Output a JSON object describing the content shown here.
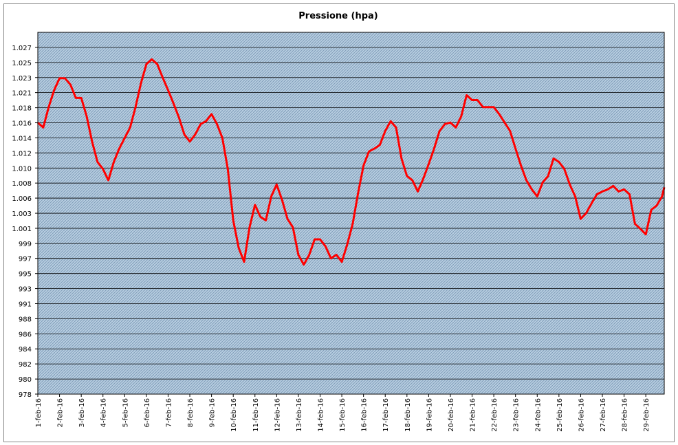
{
  "chart_data": {
    "type": "line",
    "title": "Pressione (hpa)",
    "color": "#ff0000",
    "grid": true,
    "xlim": [
      0,
      28.85
    ],
    "ylim": [
      977.7,
      1029.13
    ],
    "xticks": [
      {
        "value": 0,
        "label": "1-feb-16"
      },
      {
        "value": 1,
        "label": "2-feb-16"
      },
      {
        "value": 2,
        "label": "3-feb-16"
      },
      {
        "value": 3,
        "label": "4-feb-16"
      },
      {
        "value": 4,
        "label": "5-feb-16"
      },
      {
        "value": 5,
        "label": "6-feb-16"
      },
      {
        "value": 6,
        "label": "7-feb-16"
      },
      {
        "value": 7,
        "label": "8-feb-16"
      },
      {
        "value": 8,
        "label": "9-feb-16"
      },
      {
        "value": 9,
        "label": "10-feb-16"
      },
      {
        "value": 10,
        "label": "11-feb-16"
      },
      {
        "value": 11,
        "label": "12-feb-16"
      },
      {
        "value": 12,
        "label": "13-feb-16"
      },
      {
        "value": 13,
        "label": "14-feb-16"
      },
      {
        "value": 14,
        "label": "15-feb-16"
      },
      {
        "value": 15,
        "label": "16-feb-16"
      },
      {
        "value": 16,
        "label": "17-feb-16"
      },
      {
        "value": 17,
        "label": "18-feb-16"
      },
      {
        "value": 18,
        "label": "19-feb-16"
      },
      {
        "value": 19,
        "label": "20-feb-16"
      },
      {
        "value": 20,
        "label": "21-feb-16"
      },
      {
        "value": 21,
        "label": "22-feb-16"
      },
      {
        "value": 22,
        "label": "23-feb-16"
      },
      {
        "value": 23,
        "label": "24-feb-16"
      },
      {
        "value": 24,
        "label": "25-feb-16"
      },
      {
        "value": 25,
        "label": "26-feb-16"
      },
      {
        "value": 26,
        "label": "27-feb-16"
      },
      {
        "value": 27,
        "label": "28-feb-16"
      },
      {
        "value": 28,
        "label": "29-feb-16"
      }
    ],
    "yticks": [
      {
        "value": 977.7,
        "label": "978"
      },
      {
        "value": 979.84,
        "label": "980"
      },
      {
        "value": 981.99,
        "label": "982"
      },
      {
        "value": 984.13,
        "label": "984"
      },
      {
        "value": 986.27,
        "label": "986"
      },
      {
        "value": 988.41,
        "label": "988"
      },
      {
        "value": 990.56,
        "label": "991"
      },
      {
        "value": 992.7,
        "label": "993"
      },
      {
        "value": 994.84,
        "label": "995"
      },
      {
        "value": 996.99,
        "label": "997"
      },
      {
        "value": 999.13,
        "label": "999"
      },
      {
        "value": 1001.27,
        "label": "1.001"
      },
      {
        "value": 1003.41,
        "label": "1.003"
      },
      {
        "value": 1005.56,
        "label": "1.006"
      },
      {
        "value": 1007.7,
        "label": "1.008"
      },
      {
        "value": 1009.84,
        "label": "1.010"
      },
      {
        "value": 1011.99,
        "label": "1.012"
      },
      {
        "value": 1014.13,
        "label": "1.014"
      },
      {
        "value": 1016.27,
        "label": "1.016"
      },
      {
        "value": 1018.41,
        "label": "1.018"
      },
      {
        "value": 1020.56,
        "label": "1.021"
      },
      {
        "value": 1022.7,
        "label": "1.023"
      },
      {
        "value": 1024.84,
        "label": "1.025"
      },
      {
        "value": 1026.99,
        "label": "1.027"
      }
    ],
    "x": [
      0,
      0.25,
      0.5,
      0.75,
      1,
      1.25,
      1.5,
      1.75,
      2,
      2.25,
      2.5,
      2.75,
      3,
      3.25,
      3.5,
      3.75,
      4,
      4.25,
      4.5,
      4.75,
      5,
      5.25,
      5.5,
      5.75,
      6,
      6.25,
      6.5,
      6.75,
      7,
      7.25,
      7.5,
      7.75,
      8,
      8.25,
      8.5,
      8.75,
      9,
      9.25,
      9.5,
      9.75,
      10,
      10.25,
      10.5,
      10.75,
      11,
      11.25,
      11.5,
      11.75,
      12,
      12.25,
      12.5,
      12.75,
      13,
      13.25,
      13.5,
      13.75,
      14,
      14.25,
      14.5,
      14.75,
      15,
      15.25,
      15.5,
      15.75,
      16,
      16.25,
      16.5,
      16.75,
      17,
      17.25,
      17.5,
      17.75,
      18,
      18.25,
      18.5,
      18.75,
      19,
      19.25,
      19.5,
      19.75,
      20,
      20.25,
      20.5,
      20.75,
      21,
      21.25,
      21.5,
      21.75,
      22,
      22.25,
      22.5,
      22.75,
      23,
      23.25,
      23.5,
      23.75,
      24,
      24.25,
      24.5,
      24.75,
      25,
      25.25,
      25.5,
      25.75,
      26,
      26.25,
      26.5,
      26.75,
      27,
      27.25,
      27.5,
      27.75,
      28,
      28.25,
      28.5,
      28.75,
      28.85
    ],
    "values": [
      1016.3,
      1015.6,
      1018.5,
      1020.9,
      1022.6,
      1022.6,
      1021.7,
      1019.8,
      1019.8,
      1017.2,
      1013.6,
      1010.7,
      1009.7,
      1008.1,
      1010.7,
      1012.6,
      1014.1,
      1015.6,
      1018.5,
      1021.9,
      1024.6,
      1025.3,
      1024.6,
      1022.7,
      1020.9,
      1019.0,
      1017.0,
      1014.6,
      1013.6,
      1014.6,
      1016.1,
      1016.5,
      1017.5,
      1016.1,
      1014.1,
      1009.7,
      1002.4,
      998.5,
      996.5,
      1001.4,
      1004.6,
      1002.9,
      1002.4,
      1005.8,
      1007.5,
      1005.3,
      1002.6,
      1001.4,
      997.5,
      996.1,
      997.5,
      999.7,
      999.7,
      998.7,
      997.0,
      997.5,
      996.5,
      999.0,
      1001.9,
      1006.3,
      1010.2,
      1012.2,
      1012.6,
      1013.1,
      1015.1,
      1016.5,
      1015.6,
      1011.2,
      1008.7,
      1008.1,
      1006.5,
      1008.3,
      1010.4,
      1012.6,
      1015.1,
      1016.1,
      1016.3,
      1015.6,
      1017.2,
      1020.2,
      1019.5,
      1019.5,
      1018.5,
      1018.5,
      1018.5,
      1017.5,
      1016.3,
      1015.1,
      1012.6,
      1010.2,
      1008.1,
      1006.8,
      1005.8,
      1007.8,
      1008.7,
      1011.2,
      1010.7,
      1009.7,
      1007.5,
      1005.8,
      1002.6,
      1003.4,
      1004.8,
      1006.1,
      1006.5,
      1006.8,
      1007.3,
      1006.5,
      1006.8,
      1006.1,
      1001.9,
      1001.2,
      1000.4,
      1003.9,
      1004.5,
      1005.8,
      1007.1
    ]
  }
}
